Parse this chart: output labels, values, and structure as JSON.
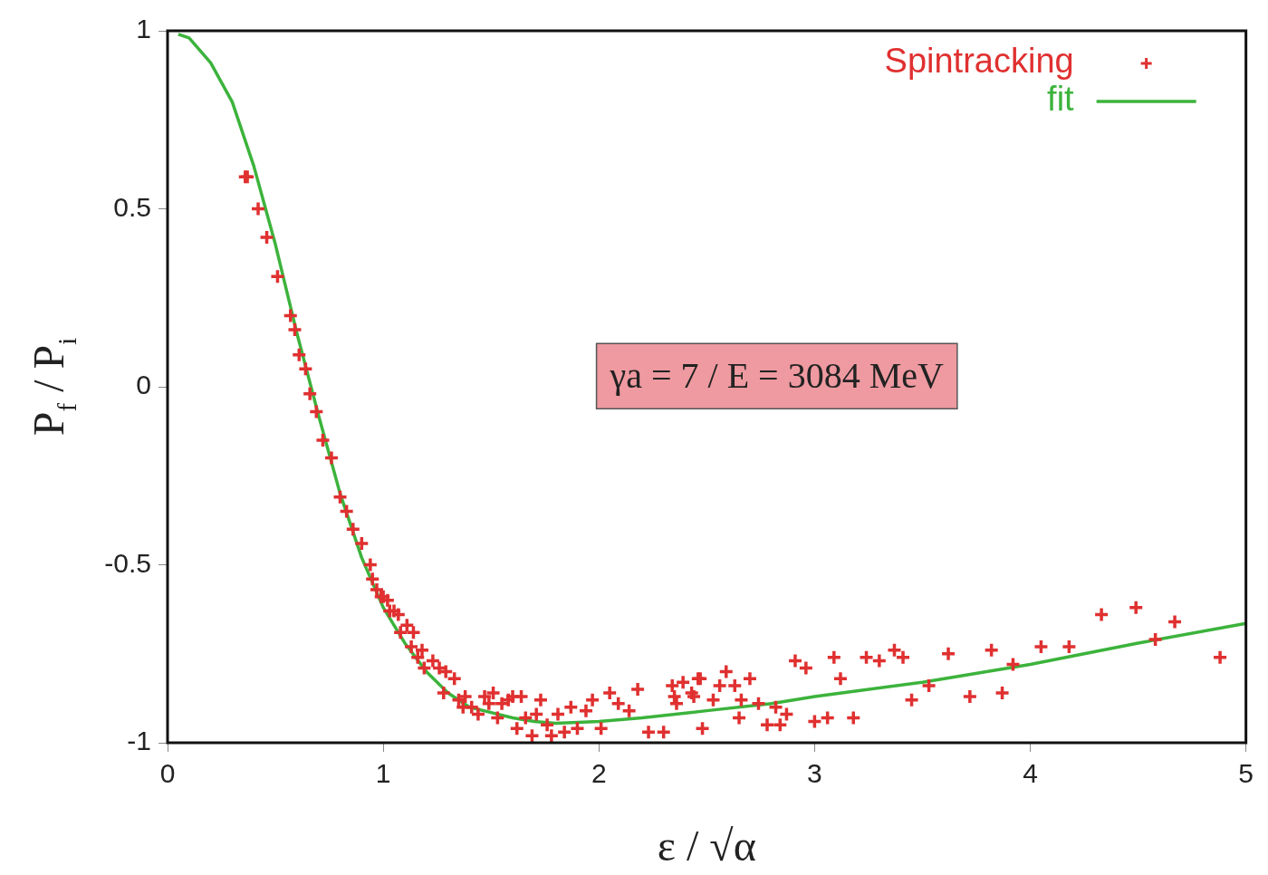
{
  "chart_data": {
    "type": "scatter",
    "xlabel": "ε / √α",
    "ylabel": "P$_{f}$ / P$_{i}$",
    "xlim": [
      0,
      5
    ],
    "xticks": [
      0,
      1,
      2,
      3,
      4,
      5
    ],
    "ylim": [
      -1,
      1
    ],
    "yticks": [
      -1,
      -0.5,
      0,
      0.5,
      1
    ],
    "grid": false,
    "legend": "top right",
    "annotations": [
      "γa = 7 / E = 3084 MeV"
    ],
    "series": [
      {
        "name": "Spintracking",
        "type": "scatter",
        "marker": "cross",
        "color": "#e03030",
        "x": [
          0.36,
          0.37,
          0.42,
          0.46,
          0.51,
          0.57,
          0.59,
          0.61,
          0.64,
          0.66,
          0.69,
          0.72,
          0.76,
          0.8,
          0.83,
          0.86,
          0.9,
          0.94,
          0.95,
          0.97,
          0.99,
          1.0,
          1.02,
          1.03,
          1.05,
          1.07,
          1.08,
          1.11,
          1.13,
          1.14,
          1.16,
          1.18,
          1.19,
          1.23,
          1.26,
          1.28,
          1.29,
          1.33,
          1.35,
          1.37,
          1.38,
          1.41,
          1.44,
          1.47,
          1.49,
          1.51,
          1.53,
          1.55,
          1.58,
          1.6,
          1.62,
          1.64,
          1.66,
          1.69,
          1.71,
          1.73,
          1.76,
          1.78,
          1.81,
          1.84,
          1.87,
          1.9,
          1.94,
          1.97,
          2.01,
          2.05,
          2.09,
          2.14,
          2.18,
          2.23,
          2.3,
          2.34,
          2.35,
          2.36,
          2.39,
          2.43,
          2.44,
          2.46,
          2.47,
          2.48,
          2.53,
          2.56,
          2.59,
          2.63,
          2.65,
          2.66,
          2.7,
          2.74,
          2.78,
          2.82,
          2.84,
          2.87,
          2.91,
          2.96,
          3.0,
          3.06,
          3.09,
          3.12,
          3.18,
          3.24,
          3.3,
          3.37,
          3.41,
          3.45,
          3.53,
          3.62,
          3.72,
          3.82,
          3.87,
          3.92,
          4.05,
          4.18,
          4.33,
          4.49,
          4.58,
          4.67,
          4.88
        ],
        "values": [
          0.59,
          0.59,
          0.5,
          0.42,
          0.31,
          0.2,
          0.16,
          0.09,
          0.05,
          -0.02,
          -0.07,
          -0.15,
          -0.2,
          -0.31,
          -0.35,
          -0.4,
          -0.44,
          -0.5,
          -0.54,
          -0.57,
          -0.59,
          -0.59,
          -0.6,
          -0.63,
          -0.63,
          -0.64,
          -0.69,
          -0.67,
          -0.73,
          -0.69,
          -0.76,
          -0.74,
          -0.79,
          -0.77,
          -0.79,
          -0.86,
          -0.8,
          -0.82,
          -0.88,
          -0.9,
          -0.87,
          -0.9,
          -0.92,
          -0.87,
          -0.89,
          -0.86,
          -0.93,
          -0.89,
          -0.88,
          -0.87,
          -0.96,
          -0.87,
          -0.93,
          -0.98,
          -0.92,
          -0.88,
          -0.95,
          -0.98,
          -0.92,
          -0.97,
          -0.9,
          -0.96,
          -0.91,
          -0.88,
          -0.96,
          -0.86,
          -0.89,
          -0.91,
          -0.85,
          -0.97,
          -0.97,
          -0.84,
          -0.87,
          -0.89,
          -0.83,
          -0.86,
          -0.87,
          -0.82,
          -0.82,
          -0.96,
          -0.88,
          -0.84,
          -0.8,
          -0.84,
          -0.93,
          -0.88,
          -0.82,
          -0.89,
          -0.95,
          -0.9,
          -0.95,
          -0.92,
          -0.77,
          -0.79,
          -0.94,
          -0.93,
          -0.76,
          -0.82,
          -0.93,
          -0.76,
          -0.77,
          -0.74,
          -0.76,
          -0.88,
          -0.84,
          -0.75,
          -0.87,
          -0.74,
          -0.86,
          -0.78,
          -0.73,
          -0.73,
          -0.64,
          -0.62,
          -0.71,
          -0.66,
          -0.76
        ]
      },
      {
        "name": "fit",
        "type": "line",
        "marker": "none",
        "line_style": "solid",
        "color": "#3cb33c",
        "x": [
          0.05,
          0.1,
          0.2,
          0.3,
          0.4,
          0.5,
          0.6,
          0.7,
          0.8,
          0.9,
          1.0,
          1.1,
          1.2,
          1.3,
          1.4,
          1.5,
          1.6,
          1.7,
          1.8,
          2.0,
          2.2,
          2.5,
          2.8,
          3.0,
          3.5,
          4.0,
          4.5,
          5.0
        ],
        "values": [
          0.99,
          0.98,
          0.91,
          0.8,
          0.62,
          0.4,
          0.15,
          -0.08,
          -0.3,
          -0.48,
          -0.62,
          -0.72,
          -0.8,
          -0.86,
          -0.9,
          -0.915,
          -0.93,
          -0.94,
          -0.945,
          -0.94,
          -0.93,
          -0.91,
          -0.89,
          -0.87,
          -0.83,
          -0.78,
          -0.72,
          -0.665
        ]
      }
    ]
  }
}
